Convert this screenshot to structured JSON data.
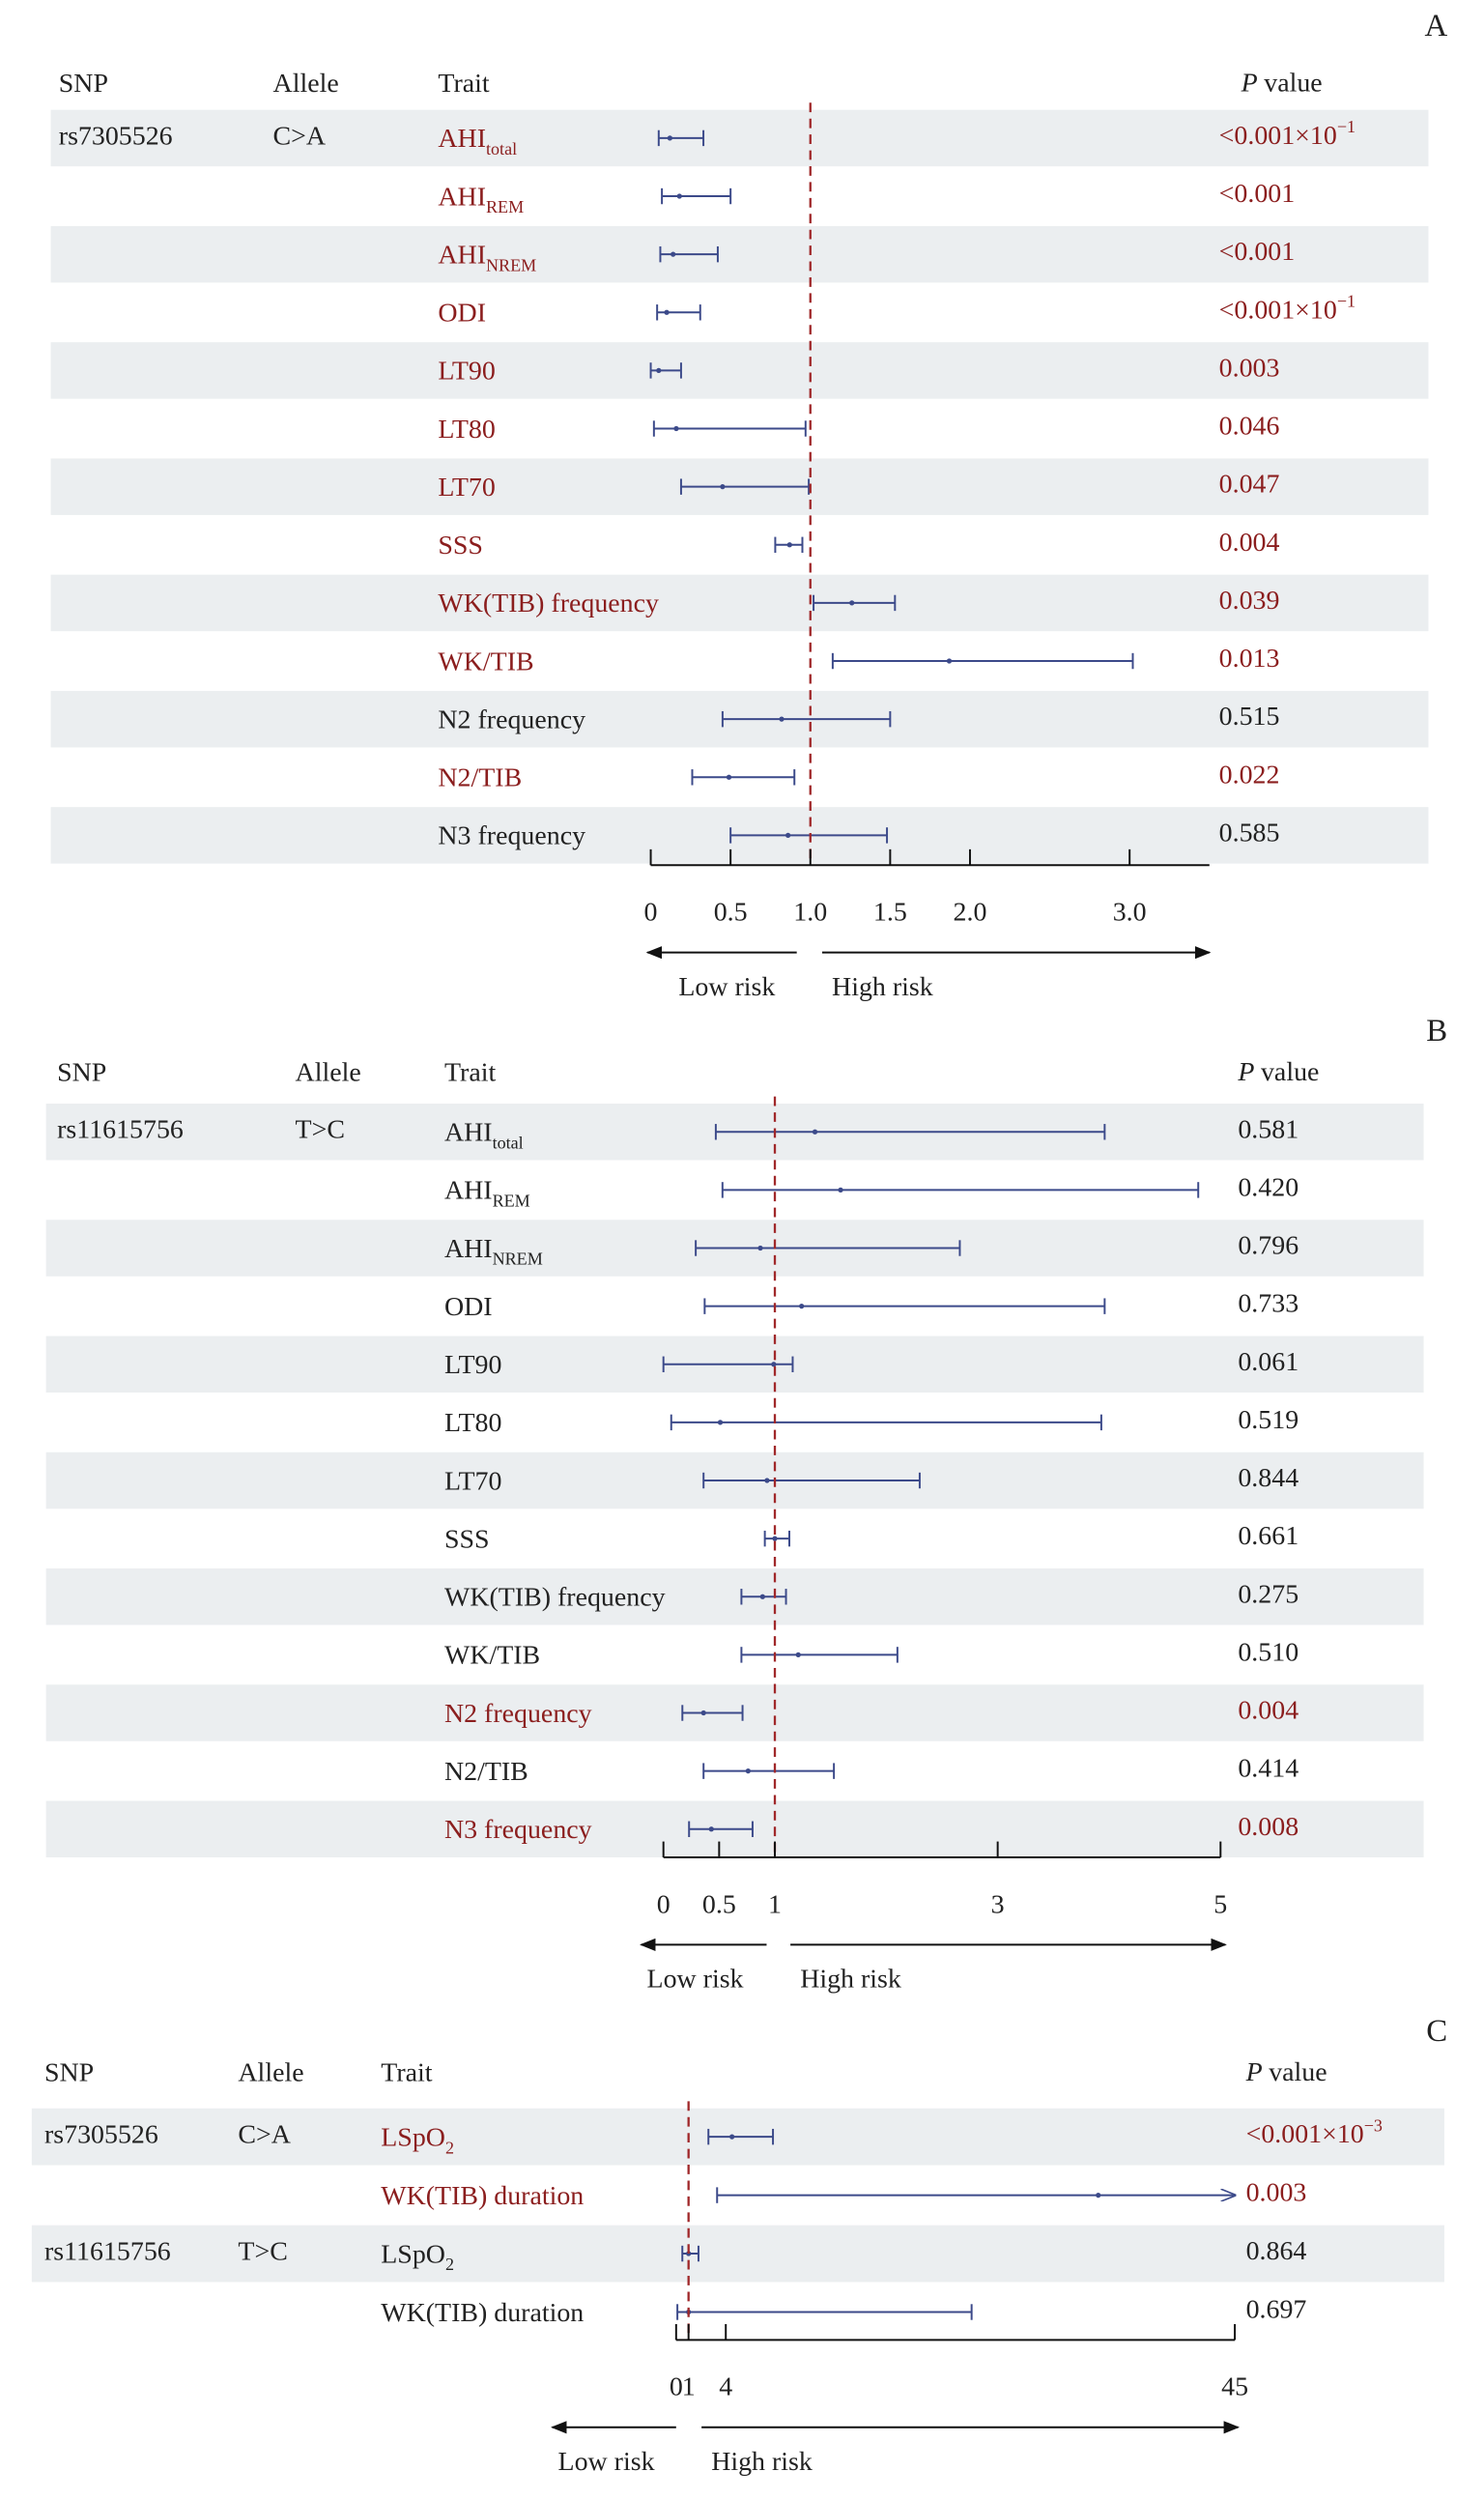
{
  "chart_data": [
    {
      "type": "forest",
      "panel": "A",
      "header": {
        "snp": "SNP",
        "allele": "Allele",
        "trait": "Trait",
        "p_italic": "P",
        "p_text": "value"
      },
      "xlim": [
        0,
        3.5
      ],
      "xticks": [
        0,
        0.5,
        {
          "value": 1,
          "label": "1.0"
        },
        1.5,
        {
          "value": 2,
          "label": "2.0"
        },
        {
          "value": 3,
          "label": "3.0"
        }
      ],
      "reference": 1,
      "low_label": "Low risk",
      "high_label": "High risk",
      "colors": {
        "significant": "#8b1e1e",
        "normal": "#222222",
        "interval": "#3c4a8a",
        "reference": "#a0282a"
      },
      "rows": [
        {
          "snp": "rs7305526",
          "allele": "C>A",
          "trait": "AHI",
          "trait_sub": "total",
          "lower": 0.05,
          "estimate": 0.12,
          "upper": 0.33,
          "p_value": "<0.001×10",
          "p_sup": "−1",
          "significant": true
        },
        {
          "trait": "AHI",
          "trait_sub": "REM",
          "lower": 0.07,
          "estimate": 0.18,
          "upper": 0.5,
          "p_value": "<0.001",
          "significant": true
        },
        {
          "trait": "AHI",
          "trait_sub": "NREM",
          "lower": 0.06,
          "estimate": 0.14,
          "upper": 0.42,
          "p_value": "<0.001",
          "significant": true
        },
        {
          "trait": "ODI",
          "lower": 0.04,
          "estimate": 0.1,
          "upper": 0.31,
          "p_value": "<0.001×10",
          "p_sup": "−1",
          "significant": true
        },
        {
          "trait": "LT90",
          "lower": 0.0,
          "estimate": 0.05,
          "upper": 0.19,
          "p_value": "0.003",
          "significant": true
        },
        {
          "trait": "LT80",
          "lower": 0.02,
          "estimate": 0.16,
          "upper": 0.97,
          "p_value": "0.046",
          "significant": true
        },
        {
          "trait": "LT70",
          "lower": 0.19,
          "estimate": 0.45,
          "upper": 0.99,
          "p_value": "0.047",
          "significant": true
        },
        {
          "trait": "SSS",
          "lower": 0.78,
          "estimate": 0.87,
          "upper": 0.95,
          "p_value": "0.004",
          "significant": true
        },
        {
          "trait": "WK(TIB) frequency",
          "lower": 1.02,
          "estimate": 1.26,
          "upper": 1.53,
          "p_value": "0.039",
          "significant": true
        },
        {
          "trait": "WK/TIB",
          "lower": 1.14,
          "estimate": 1.87,
          "upper": 3.02,
          "p_value": "0.013",
          "significant": true
        },
        {
          "trait": "N2 frequency",
          "lower": 0.45,
          "estimate": 0.82,
          "upper": 1.5,
          "p_value": "0.515",
          "significant": false
        },
        {
          "trait": "N2/TIB",
          "lower": 0.26,
          "estimate": 0.49,
          "upper": 0.9,
          "p_value": "0.022",
          "significant": true
        },
        {
          "trait": "N3 frequency",
          "lower": 0.5,
          "estimate": 0.86,
          "upper": 1.48,
          "p_value": "0.585",
          "significant": false
        }
      ]
    },
    {
      "type": "forest",
      "panel": "B",
      "header": {
        "snp": "SNP",
        "allele": "Allele",
        "trait": "Trait",
        "p_italic": "P",
        "p_text": "value"
      },
      "xlim": [
        0,
        5
      ],
      "xticks": [
        0,
        0.5,
        1,
        3,
        5
      ],
      "reference": 1,
      "low_label": "Low risk",
      "high_label": "High risk",
      "colors": {
        "significant": "#8b1e1e",
        "normal": "#222222",
        "interval": "#3c4a8a",
        "reference": "#a0282a"
      },
      "rows": [
        {
          "snp": "rs11615756",
          "allele": "T>C",
          "trait": "AHI",
          "trait_sub": "total",
          "lower": 0.47,
          "estimate": 1.36,
          "upper": 3.96,
          "p_value": "0.581",
          "significant": false
        },
        {
          "trait": "AHI",
          "trait_sub": "REM",
          "lower": 0.53,
          "estimate": 1.59,
          "upper": 4.8,
          "p_value": "0.420",
          "significant": false
        },
        {
          "trait": "AHI",
          "trait_sub": "NREM",
          "lower": 0.29,
          "estimate": 0.87,
          "upper": 2.66,
          "p_value": "0.796",
          "significant": false
        },
        {
          "trait": "ODI",
          "lower": 0.37,
          "estimate": 1.24,
          "upper": 3.96,
          "p_value": "0.733",
          "significant": false
        },
        {
          "trait": "LT90",
          "lower": 0.0,
          "estimate": 0.99,
          "upper": 1.16,
          "p_value": "0.061",
          "significant": false
        },
        {
          "trait": "LT80",
          "lower": 0.07,
          "estimate": 0.51,
          "upper": 3.93,
          "p_value": "0.519",
          "significant": false
        },
        {
          "trait": "LT70",
          "lower": 0.36,
          "estimate": 0.93,
          "upper": 2.3,
          "p_value": "0.844",
          "significant": false
        },
        {
          "trait": "SSS",
          "lower": 0.91,
          "estimate": 1.0,
          "upper": 1.13,
          "p_value": "0.661",
          "significant": false
        },
        {
          "trait": "WK(TIB) frequency",
          "lower": 0.7,
          "estimate": 0.89,
          "upper": 1.1,
          "p_value": "0.275",
          "significant": false
        },
        {
          "trait": "WK/TIB",
          "lower": 0.7,
          "estimate": 1.21,
          "upper": 2.1,
          "p_value": "0.510",
          "significant": false
        },
        {
          "trait": "N2 frequency",
          "lower": 0.17,
          "estimate": 0.36,
          "upper": 0.71,
          "p_value": "0.004",
          "significant": true
        },
        {
          "trait": "N2/TIB",
          "lower": 0.36,
          "estimate": 0.76,
          "upper": 1.53,
          "p_value": "0.414",
          "significant": false
        },
        {
          "trait": "N3 frequency",
          "lower": 0.23,
          "estimate": 0.43,
          "upper": 0.8,
          "p_value": "0.008",
          "significant": true
        }
      ]
    },
    {
      "type": "forest",
      "panel": "C",
      "header": {
        "snp": "SNP",
        "allele": "Allele",
        "trait": "Trait",
        "p_italic": "P",
        "p_text": "value"
      },
      "xlim": [
        0,
        45
      ],
      "xticks": [
        0,
        1,
        4,
        45
      ],
      "reference": 1,
      "low_label": "Low risk",
      "high_label": "High risk",
      "colors": {
        "significant": "#8b1e1e",
        "normal": "#222222",
        "interval": "#3c4a8a",
        "reference": "#a0282a"
      },
      "rows": [
        {
          "snp": "rs7305526",
          "allele": "C>A",
          "trait": "LSpO",
          "trait_sub": "2",
          "lower": 2.6,
          "estimate": 4.5,
          "upper": 7.8,
          "p_value": "<0.001×10",
          "p_sup": "−3",
          "significant": true
        },
        {
          "trait": "WK(TIB) duration",
          "lower": 3.3,
          "estimate": 34,
          "upper": 45,
          "upper_arrow": true,
          "p_value": "0.003",
          "significant": true
        },
        {
          "snp": "rs11615756",
          "allele": "T>C",
          "trait": "LSpO",
          "trait_sub": "2",
          "lower": 0.5,
          "estimate": 1.0,
          "upper": 1.8,
          "p_value": "0.864",
          "significant": false
        },
        {
          "trait": "WK(TIB) duration",
          "lower": 0.1,
          "estimate": 1.0,
          "upper": 23.8,
          "p_value": "0.697",
          "significant": false
        }
      ]
    }
  ]
}
